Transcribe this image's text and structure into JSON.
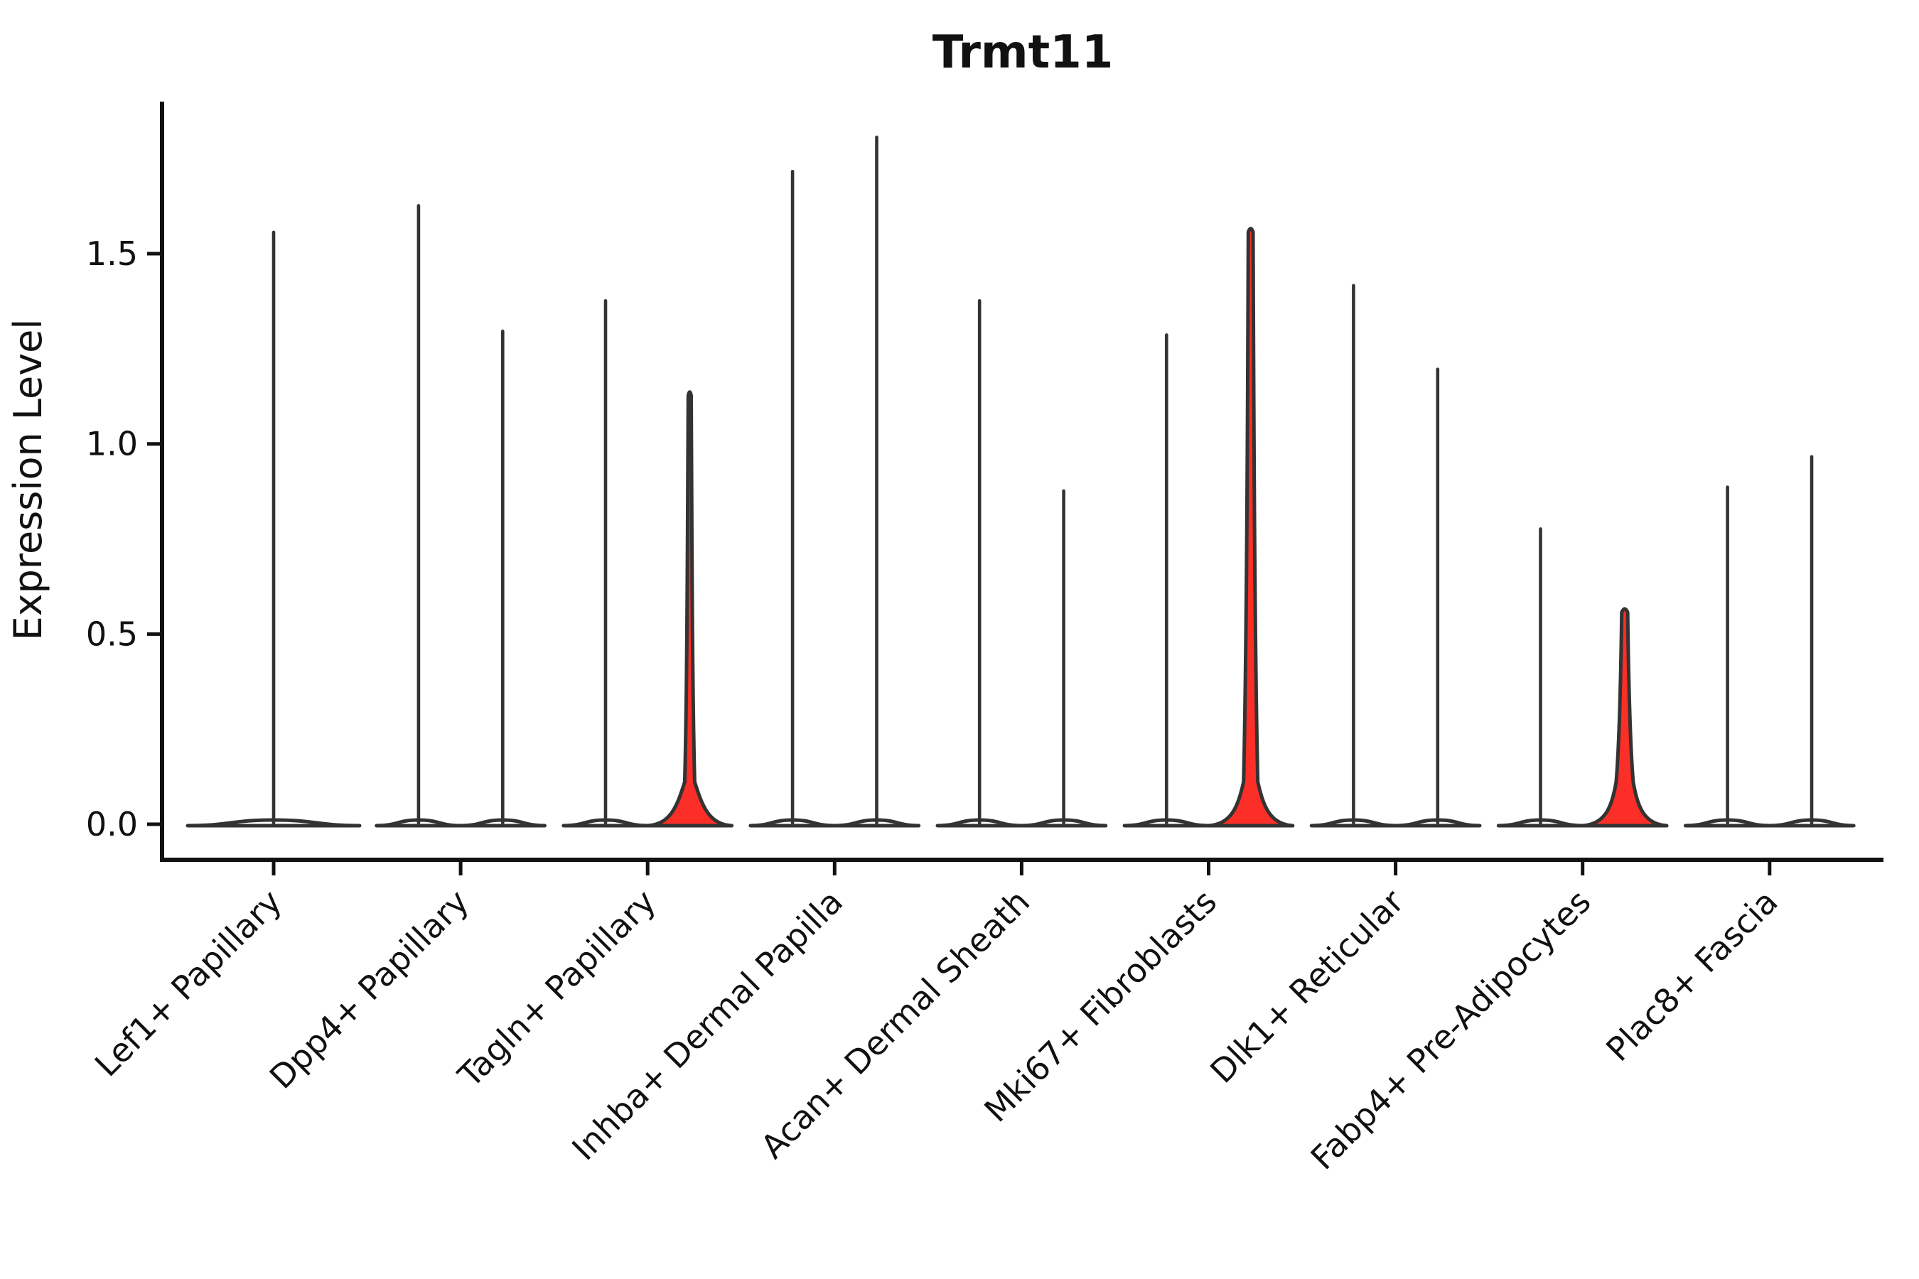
{
  "title": "Trmt11",
  "y_axis": {
    "label": "Expression Level",
    "tick_labels": [
      "0.0",
      "0.5",
      "1.0",
      "1.5"
    ]
  },
  "x_axis": {
    "categories": [
      "Lef1+ Papillary",
      "Dpp4+ Papillary",
      "Tagln+ Papillary",
      "Inhba+ Dermal Papilla",
      "Acan+ Dermal Sheath",
      "Mki67+ Fibroblasts",
      "Dlk1+ Reticular",
      "Fabp4+ Pre-Adipocytes",
      "Plac8+ Fascia"
    ]
  },
  "colors": {
    "highlight_fill": "#fb2f27",
    "default_fill": "#ffffff",
    "outline": "#333333",
    "axis": "#111111"
  },
  "chart_data": {
    "type": "violin",
    "title": "Trmt11",
    "xlabel": "",
    "ylabel": "Expression Level",
    "ylim": [
      -0.09,
      1.9
    ],
    "yticks": [
      0.0,
      0.5,
      1.0,
      1.5
    ],
    "grid": false,
    "legend": "none",
    "categories": [
      "Lef1+ Papillary",
      "Dpp4+ Papillary",
      "Tagln+ Papillary",
      "Inhba+ Dermal Papilla",
      "Acan+ Dermal Sheath",
      "Mki67+ Fibroblasts",
      "Dlk1+ Reticular",
      "Fabp4+ Pre-Adipocytes",
      "Plac8+ Fascia"
    ],
    "description": "Violin plot of Trmt11 expression; most cells at 0 (flat violins with thin spikes to the max expressed cell). Categories 2-9 contain two side-by-side violins; three right-hand violins are filled red with a density bulge near 0.",
    "violins": [
      {
        "category_index": 0,
        "slot": "center",
        "max": 1.56,
        "highlight": false
      },
      {
        "category_index": 1,
        "slot": "left",
        "max": 1.63,
        "highlight": false
      },
      {
        "category_index": 1,
        "slot": "right",
        "max": 1.3,
        "highlight": false
      },
      {
        "category_index": 2,
        "slot": "left",
        "max": 1.38,
        "highlight": false
      },
      {
        "category_index": 2,
        "slot": "right",
        "max": 1.14,
        "highlight": true,
        "bulge_value": 0.115,
        "stem_halfwidth": 5
      },
      {
        "category_index": 3,
        "slot": "left",
        "max": 1.72,
        "highlight": false
      },
      {
        "category_index": 3,
        "slot": "right",
        "max": 1.81,
        "highlight": false
      },
      {
        "category_index": 4,
        "slot": "left",
        "max": 1.38,
        "highlight": false
      },
      {
        "category_index": 4,
        "slot": "right",
        "max": 0.88,
        "highlight": false
      },
      {
        "category_index": 5,
        "slot": "left",
        "max": 1.29,
        "highlight": false
      },
      {
        "category_index": 5,
        "slot": "right",
        "max": 1.57,
        "highlight": true,
        "bulge_value": 0.115,
        "stem_halfwidth": 8
      },
      {
        "category_index": 6,
        "slot": "left",
        "max": 1.42,
        "highlight": false
      },
      {
        "category_index": 6,
        "slot": "right",
        "max": 1.2,
        "highlight": false
      },
      {
        "category_index": 7,
        "slot": "left",
        "max": 0.78,
        "highlight": false
      },
      {
        "category_index": 7,
        "slot": "right",
        "max": 0.57,
        "highlight": true,
        "bulge_value": 0.115,
        "stem_halfwidth": 10
      },
      {
        "category_index": 8,
        "slot": "left",
        "max": 0.89,
        "highlight": false
      },
      {
        "category_index": 8,
        "slot": "right",
        "max": 0.97,
        "highlight": false
      }
    ]
  }
}
